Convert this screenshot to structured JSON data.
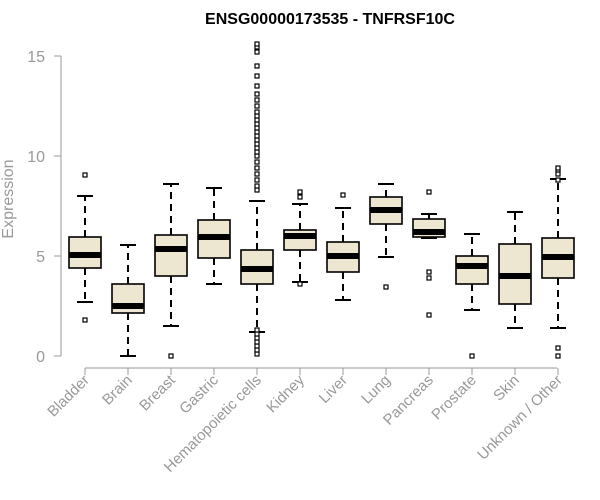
{
  "chart_data": {
    "type": "boxplot",
    "title": "ENSG00000173535 - TNFRSF10C",
    "xlabel": "",
    "ylabel": "Expression",
    "ylim": [
      0,
      15
    ],
    "yticks": [
      0,
      5,
      10,
      15
    ],
    "box_fill": "#ede6d0",
    "box_stroke": "#000000",
    "axis_color": "#999999",
    "categories": [
      "Bladder",
      "Brain",
      "Breast",
      "Gastric",
      "Hematopoietic cells",
      "Kidney",
      "Liver",
      "Lung",
      "Pancreas",
      "Prostate",
      "Skin",
      "Unknown / Other"
    ],
    "boxes": [
      {
        "name": "Bladder",
        "whisker_low": 2.7,
        "q1": 4.4,
        "median": 5.05,
        "q3": 5.95,
        "whisker_high": 8.0,
        "outliers": [
          1.8,
          9.05
        ]
      },
      {
        "name": "Brain",
        "whisker_low": 0.0,
        "q1": 2.15,
        "median": 2.5,
        "q3": 3.6,
        "whisker_high": 5.55,
        "outliers": []
      },
      {
        "name": "Breast",
        "whisker_low": 1.5,
        "q1": 4.0,
        "median": 5.35,
        "q3": 6.05,
        "whisker_high": 8.6,
        "outliers": [
          0.0
        ]
      },
      {
        "name": "Gastric",
        "whisker_low": 3.6,
        "q1": 4.9,
        "median": 5.95,
        "q3": 6.8,
        "whisker_high": 8.4,
        "outliers": []
      },
      {
        "name": "Hematopoietic cells",
        "whisker_low": 1.2,
        "q1": 3.6,
        "median": 4.35,
        "q3": 5.3,
        "whisker_high": 7.75,
        "outliers": [
          0.1,
          0.3,
          0.5,
          0.7,
          0.9,
          1.1,
          1.3,
          8.3,
          8.5,
          8.8,
          9.1,
          9.4,
          9.7,
          10.0,
          10.2,
          10.4,
          10.6,
          10.8,
          11.0,
          11.2,
          11.4,
          11.6,
          11.8,
          12.0,
          12.2,
          12.5,
          12.8,
          13.1,
          13.5,
          14.0,
          14.5,
          15.2,
          15.45,
          15.6
        ]
      },
      {
        "name": "Kidney",
        "whisker_low": 3.7,
        "q1": 5.3,
        "median": 6.0,
        "q3": 6.3,
        "whisker_high": 7.6,
        "outliers": [
          3.6,
          7.95,
          8.2
        ]
      },
      {
        "name": "Liver",
        "whisker_low": 2.8,
        "q1": 4.2,
        "median": 5.0,
        "q3": 5.7,
        "whisker_high": 7.4,
        "outliers": [
          8.05
        ]
      },
      {
        "name": "Lung",
        "whisker_low": 4.95,
        "q1": 6.6,
        "median": 7.3,
        "q3": 7.95,
        "whisker_high": 8.6,
        "outliers": [
          3.45
        ]
      },
      {
        "name": "Pancreas",
        "whisker_low": 5.9,
        "q1": 5.95,
        "median": 6.2,
        "q3": 6.85,
        "whisker_high": 7.1,
        "outliers": [
          2.05,
          3.9,
          4.2,
          8.2
        ]
      },
      {
        "name": "Prostate",
        "whisker_low": 2.3,
        "q1": 3.6,
        "median": 4.5,
        "q3": 5.0,
        "whisker_high": 6.1,
        "outliers": [
          0.0
        ]
      },
      {
        "name": "Skin",
        "whisker_low": 1.4,
        "q1": 2.6,
        "median": 4.0,
        "q3": 5.6,
        "whisker_high": 7.2,
        "outliers": []
      },
      {
        "name": "Unknown / Other",
        "whisker_low": 1.4,
        "q1": 3.9,
        "median": 4.95,
        "q3": 5.9,
        "whisker_high": 8.85,
        "outliers": [
          0.0,
          0.4,
          8.8,
          9.1,
          9.3,
          9.4
        ]
      }
    ]
  }
}
